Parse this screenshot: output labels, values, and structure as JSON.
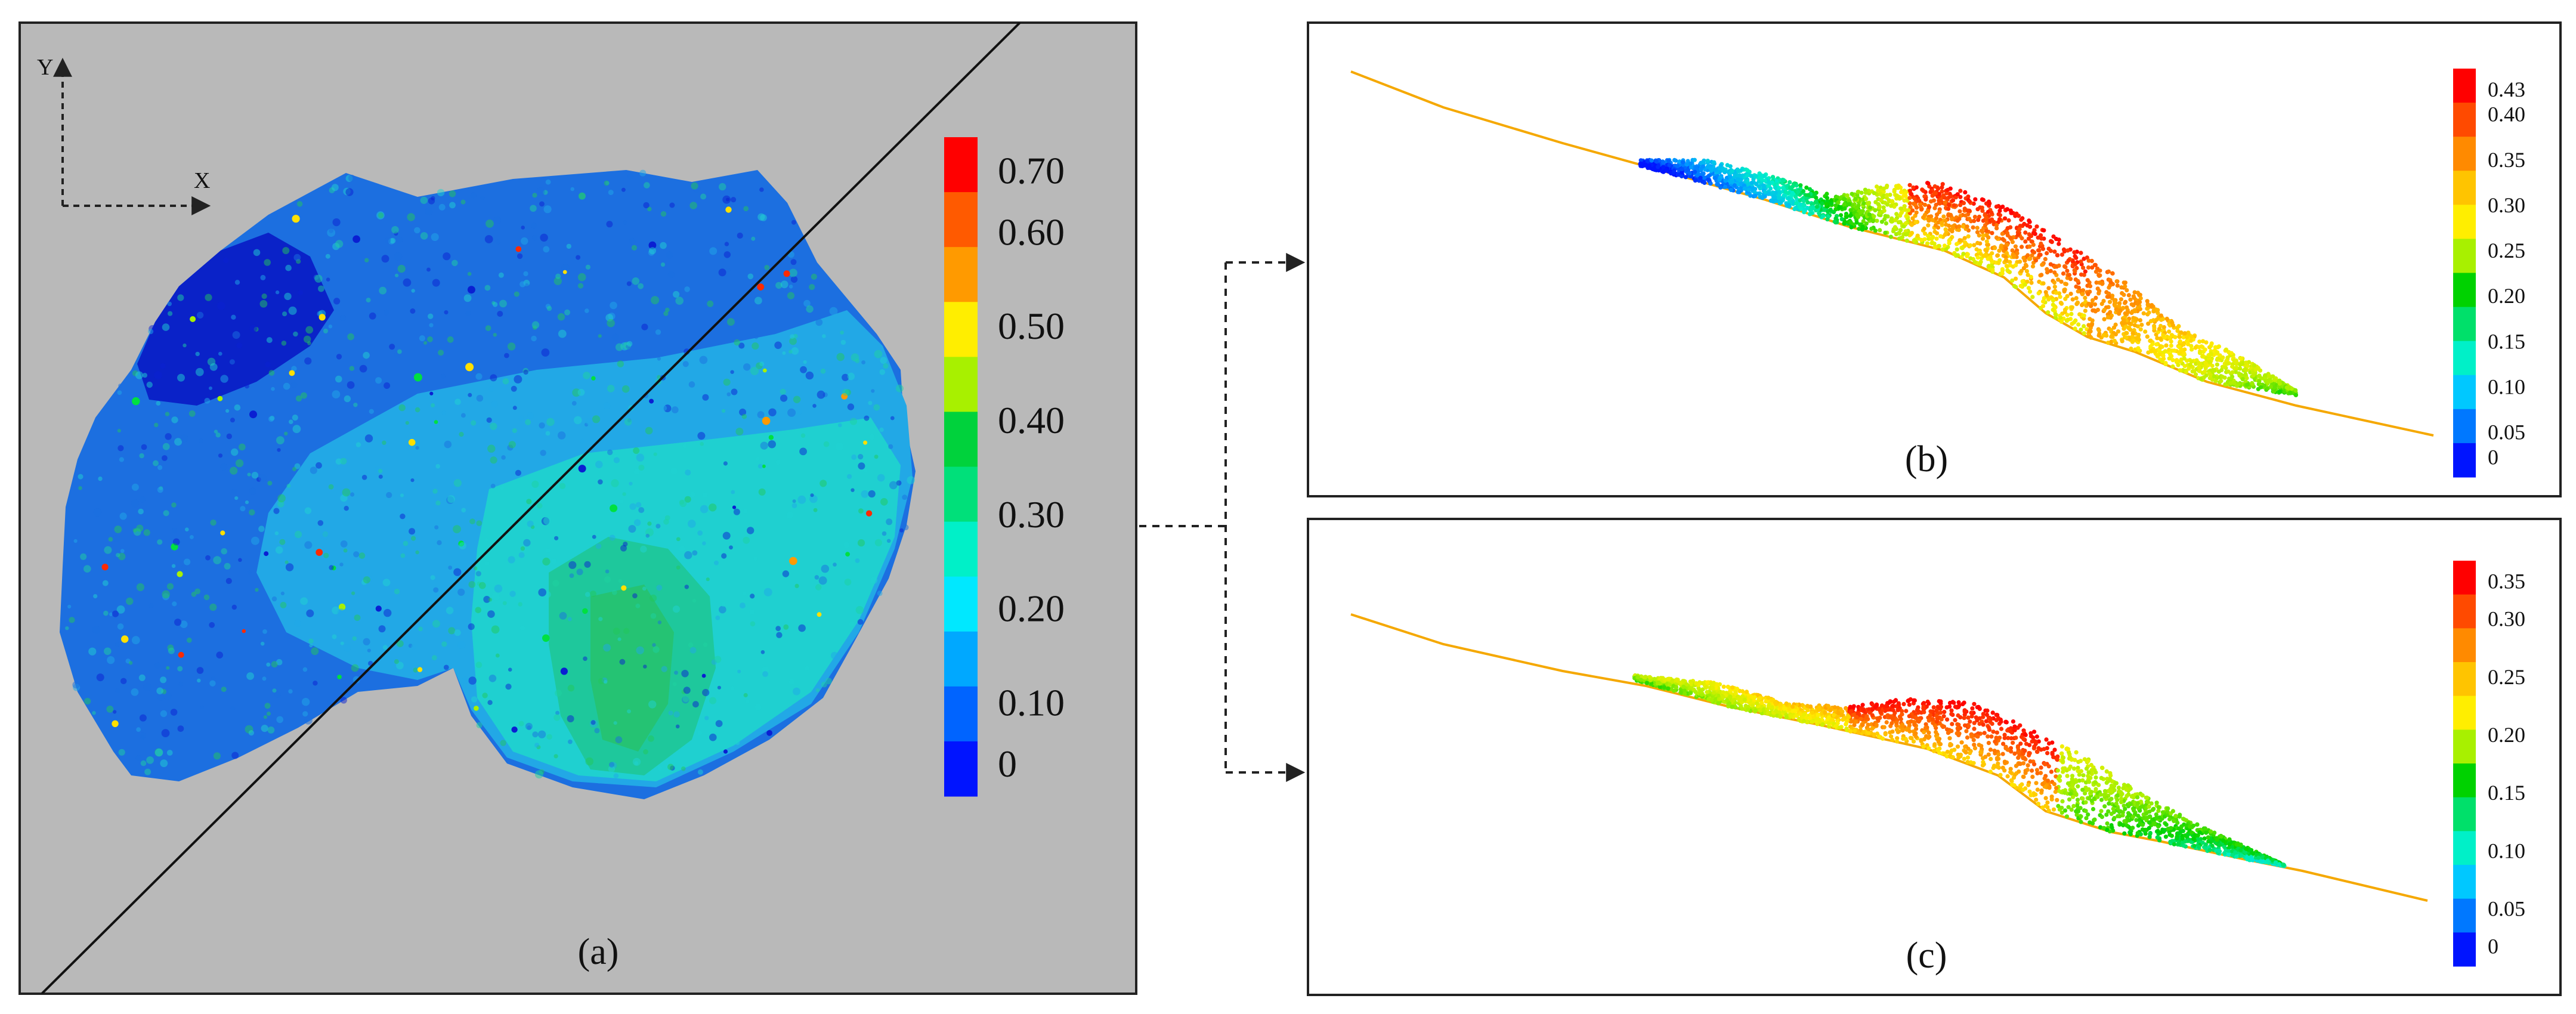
{
  "panel_a": {
    "caption": "(a)",
    "axes": {
      "y_label": "Y",
      "x_label": "X"
    },
    "colorbar": {
      "ticks": [
        "0.70",
        "0.60",
        "0.50",
        "0.40",
        "0.30",
        "0.20",
        "0.10",
        "0"
      ],
      "colors": [
        "#ff0000",
        "#ff5a00",
        "#ff9a00",
        "#ffee00",
        "#a8f000",
        "#00d23c",
        "#00e07a",
        "#00f0c8",
        "#00e8ff",
        "#00a8ff",
        "#0064ff",
        "#0014ff"
      ]
    },
    "zone_colors": [
      "#0a1fd2",
      "#1a6fe0",
      "#1fa8e8",
      "#1fd2d2",
      "#1ed2a0",
      "#22c85a"
    ]
  },
  "panel_b": {
    "caption": "(b)",
    "colorbar": {
      "ticks": [
        "0.43",
        "0.40",
        "0.35",
        "0.30",
        "0.25",
        "0.20",
        "0.15",
        "0.10",
        "0.05",
        "0"
      ],
      "colors": [
        "#ff0000",
        "#ff4a00",
        "#ff8a00",
        "#ffc400",
        "#ffee00",
        "#a8f000",
        "#00d200",
        "#00e06a",
        "#00f0c8",
        "#00c8ff",
        "#0078ff",
        "#0014ff"
      ]
    }
  },
  "panel_c": {
    "caption": "(c)",
    "colorbar": {
      "ticks": [
        "0.35",
        "0.30",
        "0.25",
        "0.20",
        "0.15",
        "0.10",
        "0.05",
        "0"
      ],
      "colors": [
        "#ff0000",
        "#ff4a00",
        "#ff8a00",
        "#ffc400",
        "#ffee00",
        "#a8f000",
        "#00d200",
        "#00e06a",
        "#00f0c8",
        "#00c8ff",
        "#0078ff",
        "#0014ff"
      ]
    }
  },
  "slope_line_color": "#f5a800"
}
